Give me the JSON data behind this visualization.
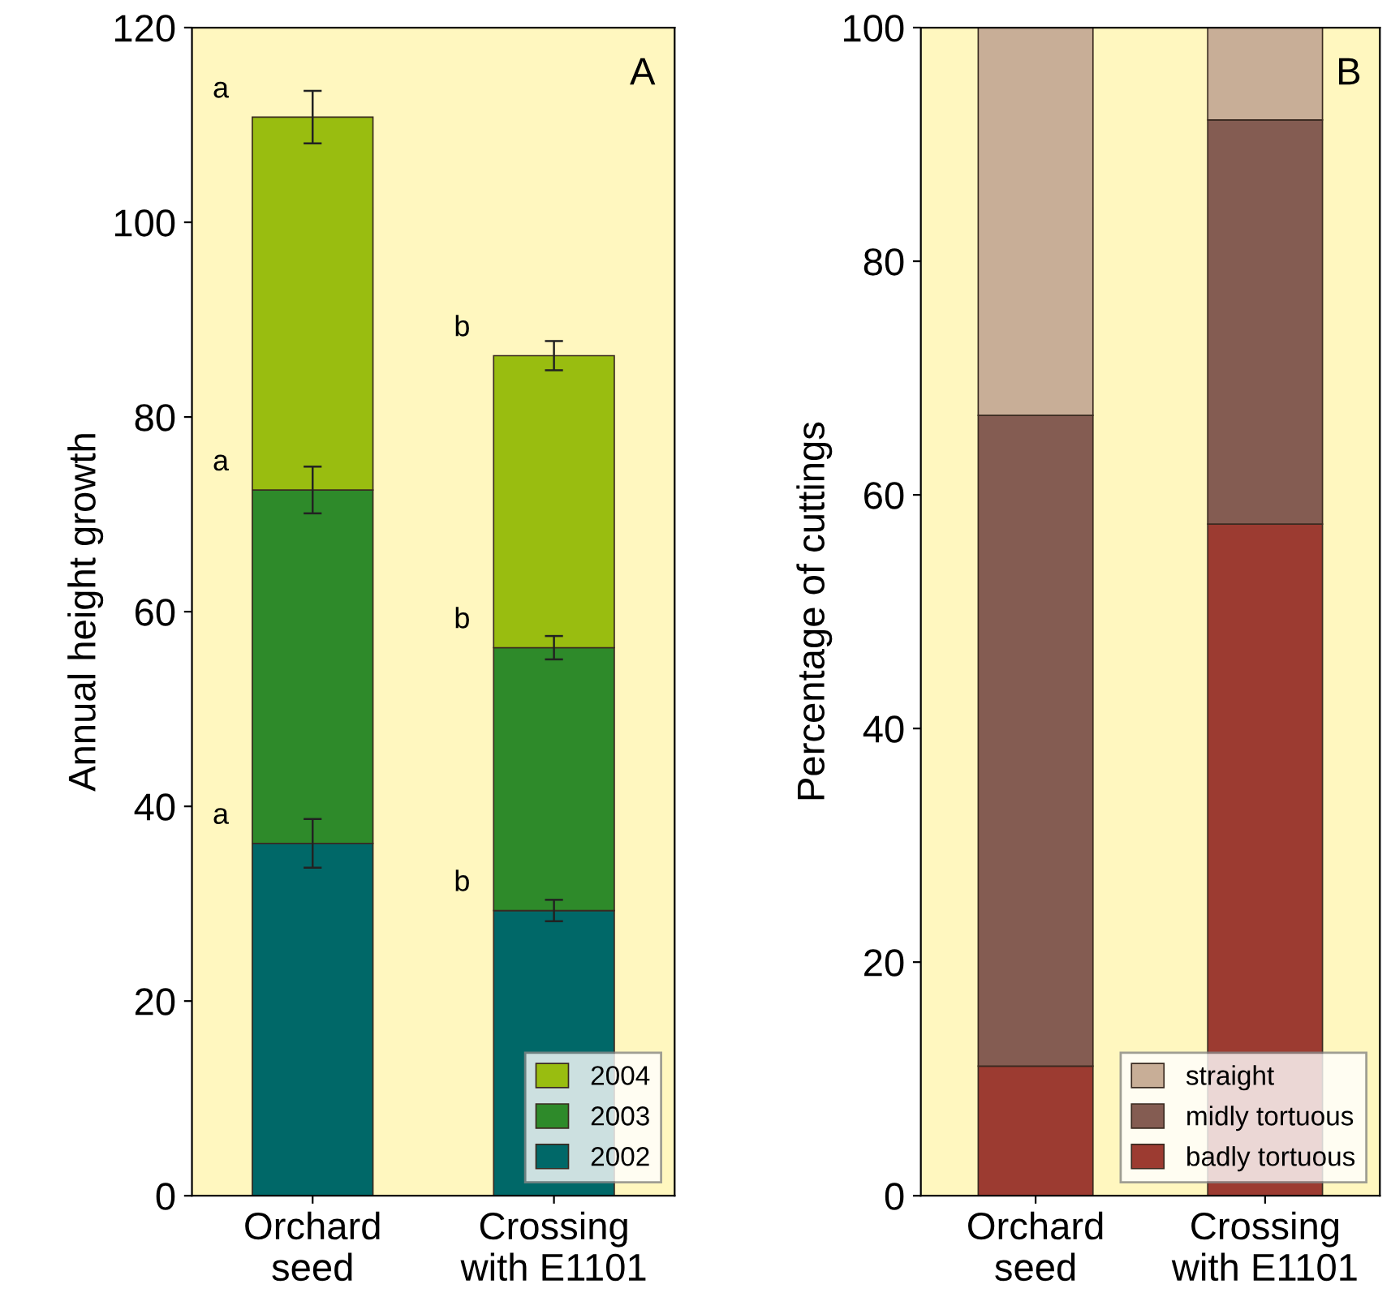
{
  "chart_data": [
    {
      "type": "bar",
      "stacked": true,
      "ylabel": "Annual height growth",
      "categories": [
        "Orchard\nseed",
        "Crossing\nwith E1101"
      ],
      "ylim": [
        0,
        120
      ],
      "yticks": [
        0,
        20,
        40,
        60,
        80,
        100,
        120
      ],
      "grid": false,
      "legend": "bottom right",
      "series": [
        {
          "name": "2002",
          "color": "#006868",
          "values": [
            36.2,
            29.3
          ],
          "errors": [
            2.5,
            1.1
          ]
        },
        {
          "name": "2003",
          "color": "#2e8a2a",
          "values": [
            36.3,
            27.0
          ],
          "errors": [
            2.4,
            1.2
          ]
        },
        {
          "name": "2004",
          "color": "#99bd10",
          "values": [
            38.3,
            30.0
          ],
          "errors": [
            2.7,
            1.5
          ]
        }
      ],
      "annotations": [
        "A",
        {
          "text": "a",
          "x": "Orchard\nseed",
          "y": 36.2
        },
        {
          "text": "a",
          "x": "Orchard\nseed",
          "y": 72.5
        },
        {
          "text": "a",
          "x": "Orchard\nseed",
          "y": 110.8
        },
        {
          "text": "b",
          "x": "Crossing\nwith E1101",
          "y": 29.3
        },
        {
          "text": "b",
          "x": "Crossing\nwith E1101",
          "y": 56.3
        },
        {
          "text": "b",
          "x": "Crossing\nwith E1101",
          "y": 86.3
        }
      ]
    },
    {
      "type": "bar",
      "stacked": true,
      "ylabel": "Percentage of cuttings",
      "categories": [
        "Orchard\nseed",
        "Crossing\nwith E1101"
      ],
      "ylim": [
        0,
        100
      ],
      "yticks": [
        0,
        20,
        40,
        60,
        80,
        100
      ],
      "grid": false,
      "legend": "bottom right",
      "series": [
        {
          "name": "badly tortuous",
          "color": "#9c3b31",
          "values": [
            11.1,
            57.5
          ]
        },
        {
          "name": "midly tortuous",
          "color": "#845c52",
          "values": [
            55.7,
            34.6
          ]
        },
        {
          "name": "straight",
          "color": "#c8ae97",
          "values": [
            33.2,
            7.9
          ]
        }
      ],
      "annotations": [
        "B"
      ]
    }
  ]
}
